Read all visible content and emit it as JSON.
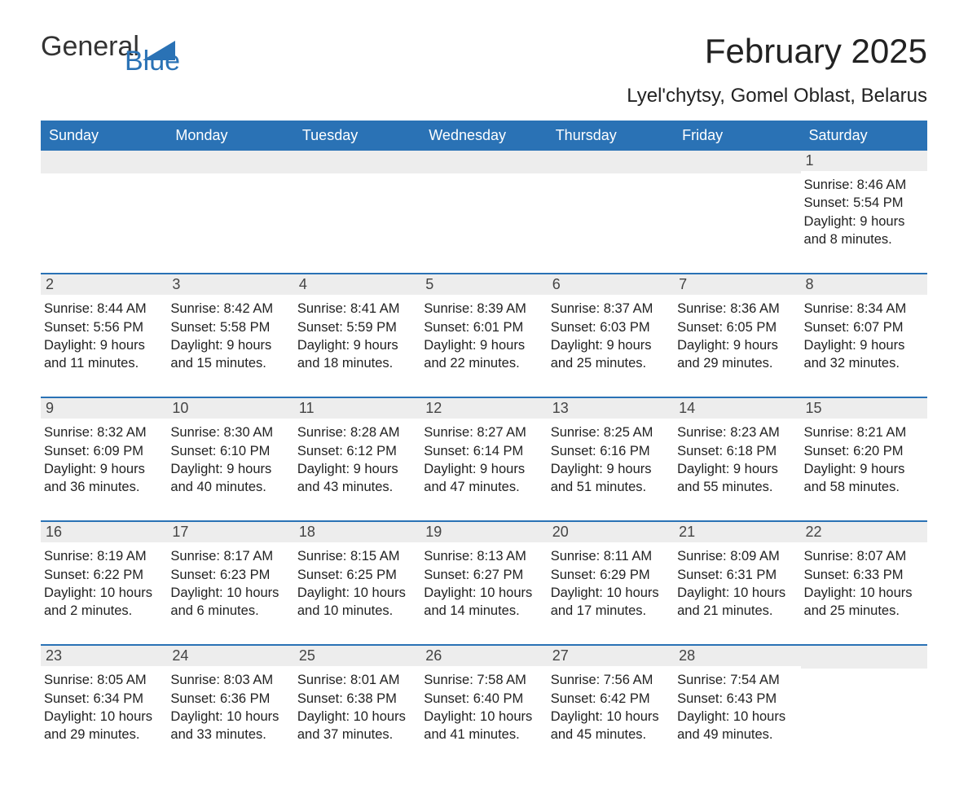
{
  "logo": {
    "text_general": "General",
    "text_blue": "Blue"
  },
  "header": {
    "month_title": "February 2025",
    "location": "Lyel'chytsy, Gomel Oblast, Belarus"
  },
  "day_names": [
    "Sunday",
    "Monday",
    "Tuesday",
    "Wednesday",
    "Thursday",
    "Friday",
    "Saturday"
  ],
  "colors": {
    "header_bg": "#2a72b5",
    "row_separator": "#2a72b5",
    "daynum_bg": "#ededed"
  },
  "weeks": [
    [
      {
        "blank": true
      },
      {
        "blank": true
      },
      {
        "blank": true
      },
      {
        "blank": true
      },
      {
        "blank": true
      },
      {
        "blank": true
      },
      {
        "day": "1",
        "sunrise": "Sunrise: 8:46 AM",
        "sunset": "Sunset: 5:54 PM",
        "daylight": "Daylight: 9 hours and 8 minutes."
      }
    ],
    [
      {
        "day": "2",
        "sunrise": "Sunrise: 8:44 AM",
        "sunset": "Sunset: 5:56 PM",
        "daylight": "Daylight: 9 hours and 11 minutes."
      },
      {
        "day": "3",
        "sunrise": "Sunrise: 8:42 AM",
        "sunset": "Sunset: 5:58 PM",
        "daylight": "Daylight: 9 hours and 15 minutes."
      },
      {
        "day": "4",
        "sunrise": "Sunrise: 8:41 AM",
        "sunset": "Sunset: 5:59 PM",
        "daylight": "Daylight: 9 hours and 18 minutes."
      },
      {
        "day": "5",
        "sunrise": "Sunrise: 8:39 AM",
        "sunset": "Sunset: 6:01 PM",
        "daylight": "Daylight: 9 hours and 22 minutes."
      },
      {
        "day": "6",
        "sunrise": "Sunrise: 8:37 AM",
        "sunset": "Sunset: 6:03 PM",
        "daylight": "Daylight: 9 hours and 25 minutes."
      },
      {
        "day": "7",
        "sunrise": "Sunrise: 8:36 AM",
        "sunset": "Sunset: 6:05 PM",
        "daylight": "Daylight: 9 hours and 29 minutes."
      },
      {
        "day": "8",
        "sunrise": "Sunrise: 8:34 AM",
        "sunset": "Sunset: 6:07 PM",
        "daylight": "Daylight: 9 hours and 32 minutes."
      }
    ],
    [
      {
        "day": "9",
        "sunrise": "Sunrise: 8:32 AM",
        "sunset": "Sunset: 6:09 PM",
        "daylight": "Daylight: 9 hours and 36 minutes."
      },
      {
        "day": "10",
        "sunrise": "Sunrise: 8:30 AM",
        "sunset": "Sunset: 6:10 PM",
        "daylight": "Daylight: 9 hours and 40 minutes."
      },
      {
        "day": "11",
        "sunrise": "Sunrise: 8:28 AM",
        "sunset": "Sunset: 6:12 PM",
        "daylight": "Daylight: 9 hours and 43 minutes."
      },
      {
        "day": "12",
        "sunrise": "Sunrise: 8:27 AM",
        "sunset": "Sunset: 6:14 PM",
        "daylight": "Daylight: 9 hours and 47 minutes."
      },
      {
        "day": "13",
        "sunrise": "Sunrise: 8:25 AM",
        "sunset": "Sunset: 6:16 PM",
        "daylight": "Daylight: 9 hours and 51 minutes."
      },
      {
        "day": "14",
        "sunrise": "Sunrise: 8:23 AM",
        "sunset": "Sunset: 6:18 PM",
        "daylight": "Daylight: 9 hours and 55 minutes."
      },
      {
        "day": "15",
        "sunrise": "Sunrise: 8:21 AM",
        "sunset": "Sunset: 6:20 PM",
        "daylight": "Daylight: 9 hours and 58 minutes."
      }
    ],
    [
      {
        "day": "16",
        "sunrise": "Sunrise: 8:19 AM",
        "sunset": "Sunset: 6:22 PM",
        "daylight": "Daylight: 10 hours and 2 minutes."
      },
      {
        "day": "17",
        "sunrise": "Sunrise: 8:17 AM",
        "sunset": "Sunset: 6:23 PM",
        "daylight": "Daylight: 10 hours and 6 minutes."
      },
      {
        "day": "18",
        "sunrise": "Sunrise: 8:15 AM",
        "sunset": "Sunset: 6:25 PM",
        "daylight": "Daylight: 10 hours and 10 minutes."
      },
      {
        "day": "19",
        "sunrise": "Sunrise: 8:13 AM",
        "sunset": "Sunset: 6:27 PM",
        "daylight": "Daylight: 10 hours and 14 minutes."
      },
      {
        "day": "20",
        "sunrise": "Sunrise: 8:11 AM",
        "sunset": "Sunset: 6:29 PM",
        "daylight": "Daylight: 10 hours and 17 minutes."
      },
      {
        "day": "21",
        "sunrise": "Sunrise: 8:09 AM",
        "sunset": "Sunset: 6:31 PM",
        "daylight": "Daylight: 10 hours and 21 minutes."
      },
      {
        "day": "22",
        "sunrise": "Sunrise: 8:07 AM",
        "sunset": "Sunset: 6:33 PM",
        "daylight": "Daylight: 10 hours and 25 minutes."
      }
    ],
    [
      {
        "day": "23",
        "sunrise": "Sunrise: 8:05 AM",
        "sunset": "Sunset: 6:34 PM",
        "daylight": "Daylight: 10 hours and 29 minutes."
      },
      {
        "day": "24",
        "sunrise": "Sunrise: 8:03 AM",
        "sunset": "Sunset: 6:36 PM",
        "daylight": "Daylight: 10 hours and 33 minutes."
      },
      {
        "day": "25",
        "sunrise": "Sunrise: 8:01 AM",
        "sunset": "Sunset: 6:38 PM",
        "daylight": "Daylight: 10 hours and 37 minutes."
      },
      {
        "day": "26",
        "sunrise": "Sunrise: 7:58 AM",
        "sunset": "Sunset: 6:40 PM",
        "daylight": "Daylight: 10 hours and 41 minutes."
      },
      {
        "day": "27",
        "sunrise": "Sunrise: 7:56 AM",
        "sunset": "Sunset: 6:42 PM",
        "daylight": "Daylight: 10 hours and 45 minutes."
      },
      {
        "day": "28",
        "sunrise": "Sunrise: 7:54 AM",
        "sunset": "Sunset: 6:43 PM",
        "daylight": "Daylight: 10 hours and 49 minutes."
      },
      {
        "blank": true
      }
    ]
  ]
}
